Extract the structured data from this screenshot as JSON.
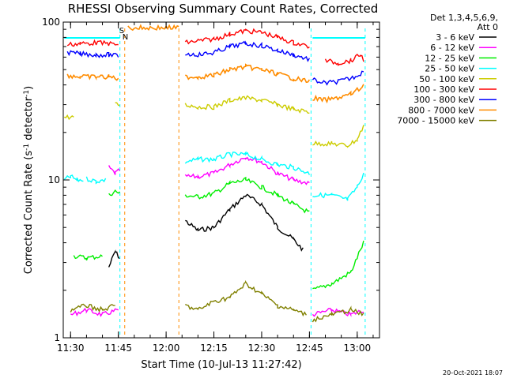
{
  "chart_data": {
    "type": "line",
    "title": "RHESSI Observing Summary Count Rates, Corrected",
    "xlabel": "Start Time (10-Jul-13 11:27:42)",
    "ylabel": "Corrected Count Rate (s",
    "ylabel_sup1": "-1",
    "ylabel_mid": " detector",
    "ylabel_sup2": "-1",
    "ylabel_end": ")",
    "y_scale": "log",
    "ylim": [
      1,
      100
    ],
    "y_ticks": [
      {
        "value": 1,
        "label": "1"
      },
      {
        "value": 10,
        "label": "10"
      },
      {
        "value": 100,
        "label": "100"
      }
    ],
    "xlim": [
      "11:27:42",
      "13:07:00"
    ],
    "x_ticks": [
      "11:30",
      "11:45",
      "12:00",
      "12:15",
      "12:30",
      "12:45",
      "13:00"
    ],
    "legend_title": [
      "Det 1,3,4,5,6,9,",
      "Att 0"
    ],
    "legend_position": "right",
    "markers": [
      {
        "label": "S",
        "time": "11:46",
        "color": "#ff8c00"
      },
      {
        "label": "N",
        "time": "11:47",
        "color": "#ff8c00"
      }
    ],
    "timestamp": "20-Oct-2021 18:07",
    "series": [
      {
        "name": "3 - 6 keV",
        "color": "#000000",
        "segments": [
          {
            "t": [
              "11:42",
              "11:44",
              "11:45:30"
            ],
            "v": [
              2.8,
              3.5,
              3.2
            ]
          },
          {
            "t": [
              "12:06",
              "12:10",
              "12:15",
              "12:20",
              "12:25",
              "12:30",
              "12:35",
              "12:40",
              "12:43"
            ],
            "v": [
              5.5,
              4.8,
              5.0,
              6.5,
              8.0,
              7.0,
              5.0,
              4.2,
              3.6
            ]
          }
        ]
      },
      {
        "name": "6 - 12 keV",
        "color": "#ff00ff",
        "segments": [
          {
            "t": [
              "11:30",
              "11:35",
              "11:40",
              "11:45"
            ],
            "v": [
              1.4,
              1.5,
              1.4,
              1.5
            ]
          },
          {
            "t": [
              "11:42",
              "11:44",
              "11:45:30"
            ],
            "v": [
              12,
              11,
              11.5
            ]
          },
          {
            "t": [
              "12:06",
              "12:10",
              "12:15",
              "12:20",
              "12:25",
              "12:30",
              "12:35",
              "12:40",
              "12:45"
            ],
            "v": [
              10.5,
              10.5,
              11,
              12.5,
              14,
              13,
              11,
              10,
              9.5
            ]
          },
          {
            "t": [
              "12:46",
              "12:52",
              "12:58",
              "13:02"
            ],
            "v": [
              1.4,
              1.5,
              1.4,
              1.5
            ]
          }
        ]
      },
      {
        "name": "12 - 25 keV",
        "color": "#00ee00",
        "segments": [
          {
            "t": [
              "11:31",
              "11:35",
              "11:40"
            ],
            "v": [
              3.3,
              3.2,
              3.3
            ]
          },
          {
            "t": [
              "11:42",
              "11:44",
              "11:45:30"
            ],
            "v": [
              8.0,
              8.5,
              8.2
            ]
          },
          {
            "t": [
              "12:06",
              "12:10",
              "12:15",
              "12:20",
              "12:25",
              "12:30",
              "12:35",
              "12:40",
              "12:45"
            ],
            "v": [
              8.0,
              7.8,
              8.2,
              9.5,
              10.0,
              9.0,
              8.0,
              7.0,
              6.2
            ]
          },
          {
            "t": [
              "12:46",
              "12:52",
              "12:58",
              "13:02"
            ],
            "v": [
              2.0,
              2.2,
              2.6,
              4.0
            ]
          }
        ]
      },
      {
        "name": "25 - 50 keV",
        "color": "#00ffff",
        "segments": [
          {
            "t": [
              "11:28",
              "11:30",
              "11:32",
              "11:34"
            ],
            "v": [
              10,
              10.5,
              10,
              10
            ]
          },
          {
            "t": [
              "11:35",
              "11:38",
              "11:41"
            ],
            "v": [
              10.2,
              9.8,
              10
            ]
          },
          {
            "t": [
              "12:06",
              "12:10",
              "12:15",
              "12:20",
              "12:25",
              "12:30",
              "12:35",
              "12:40",
              "12:45"
            ],
            "v": [
              13,
              13.5,
              13.5,
              14.5,
              14.5,
              13.5,
              12.5,
              12,
              11
            ]
          },
          {
            "t": [
              "12:46",
              "12:52",
              "12:57",
              "13:00",
              "13:02"
            ],
            "v": [
              8.0,
              8.0,
              7.5,
              9.0,
              11
            ]
          }
        ]
      },
      {
        "name": "50 - 100 keV",
        "color": "#cccc00",
        "segments": [
          {
            "t": [
              "11:28",
              "11:31"
            ],
            "v": [
              25,
              25
            ]
          },
          {
            "t": [
              "11:44",
              "11:45:30"
            ],
            "v": [
              30,
              30
            ]
          },
          {
            "t": [
              "12:06",
              "12:10",
              "12:15",
              "12:20",
              "12:25",
              "12:30",
              "12:35",
              "12:40",
              "12:45"
            ],
            "v": [
              30,
              29,
              29,
              32,
              33,
              32,
              30,
              28,
              27
            ]
          },
          {
            "t": [
              "12:46",
              "12:52",
              "12:57",
              "13:00",
              "13:02"
            ],
            "v": [
              17,
              17,
              16.5,
              18,
              22
            ]
          }
        ]
      },
      {
        "name": "100 - 300 keV",
        "color": "#ff0000",
        "segments": [
          {
            "t": [
              "11:29",
              "11:33",
              "11:38",
              "11:42",
              "11:45"
            ],
            "v": [
              72,
              73,
              74,
              73,
              72
            ]
          },
          {
            "t": [
              "12:06",
              "12:10",
              "12:15",
              "12:20",
              "12:25",
              "12:30",
              "12:35",
              "12:40",
              "12:45"
            ],
            "v": [
              74,
              76,
              78,
              84,
              88,
              86,
              80,
              74,
              70
            ]
          },
          {
            "t": [
              "12:50",
              "12:54",
              "12:58",
              "13:01",
              "13:02"
            ],
            "v": [
              57,
              55,
              57,
              62,
              58
            ]
          }
        ]
      },
      {
        "name": "300 - 800 keV",
        "color": "#0000ff",
        "segments": [
          {
            "t": [
              "11:29",
              "11:33",
              "11:38",
              "11:42",
              "11:45"
            ],
            "v": [
              64,
              63,
              62,
              62,
              61
            ]
          },
          {
            "t": [
              "12:06",
              "12:10",
              "12:15",
              "12:20",
              "12:25",
              "12:30",
              "12:35",
              "12:40",
              "12:45"
            ],
            "v": [
              63,
              62,
              64,
              70,
              73,
              71,
              66,
              62,
              58
            ]
          },
          {
            "t": [
              "12:46",
              "12:50",
              "12:54",
              "12:58",
              "13:01",
              "13:02"
            ],
            "v": [
              43,
              41,
              42,
              44,
              47,
              49
            ]
          }
        ]
      },
      {
        "name": "800 - 7000 keV",
        "color": "#ff8c00",
        "segments": [
          {
            "t": [
              "11:29",
              "11:33",
              "11:38",
              "11:42",
              "11:45"
            ],
            "v": [
              46,
              45,
              45,
              45,
              44
            ]
          },
          {
            "t": [
              "11:48",
              "12:04"
            ],
            "v": [
              92,
              92
            ]
          },
          {
            "t": [
              "12:06",
              "12:10",
              "12:15",
              "12:20",
              "12:25",
              "12:30",
              "12:35",
              "12:40",
              "12:45"
            ],
            "v": [
              45,
              45,
              46,
              50,
              52,
              50,
              47,
              44,
              42
            ]
          },
          {
            "t": [
              "12:46",
              "12:50",
              "12:54",
              "12:58",
              "13:01",
              "13:02"
            ],
            "v": [
              33,
              32,
              33,
              35,
              38,
              40
            ]
          }
        ]
      },
      {
        "name": "7000 - 15000 keV",
        "color": "#808000",
        "segments": [
          {
            "t": [
              "11:30",
              "11:35",
              "11:40",
              "11:44"
            ],
            "v": [
              1.5,
              1.6,
              1.5,
              1.6
            ]
          },
          {
            "t": [
              "12:06",
              "12:10",
              "12:15",
              "12:20",
              "12:25",
              "12:30",
              "12:35",
              "12:40",
              "12:44"
            ],
            "v": [
              1.6,
              1.5,
              1.7,
              1.8,
              2.2,
              1.9,
              1.6,
              1.5,
              1.4
            ]
          },
          {
            "t": [
              "12:46",
              "12:52",
              "12:58",
              "13:02"
            ],
            "v": [
              1.3,
              1.4,
              1.5,
              1.4
            ]
          }
        ]
      }
    ]
  }
}
